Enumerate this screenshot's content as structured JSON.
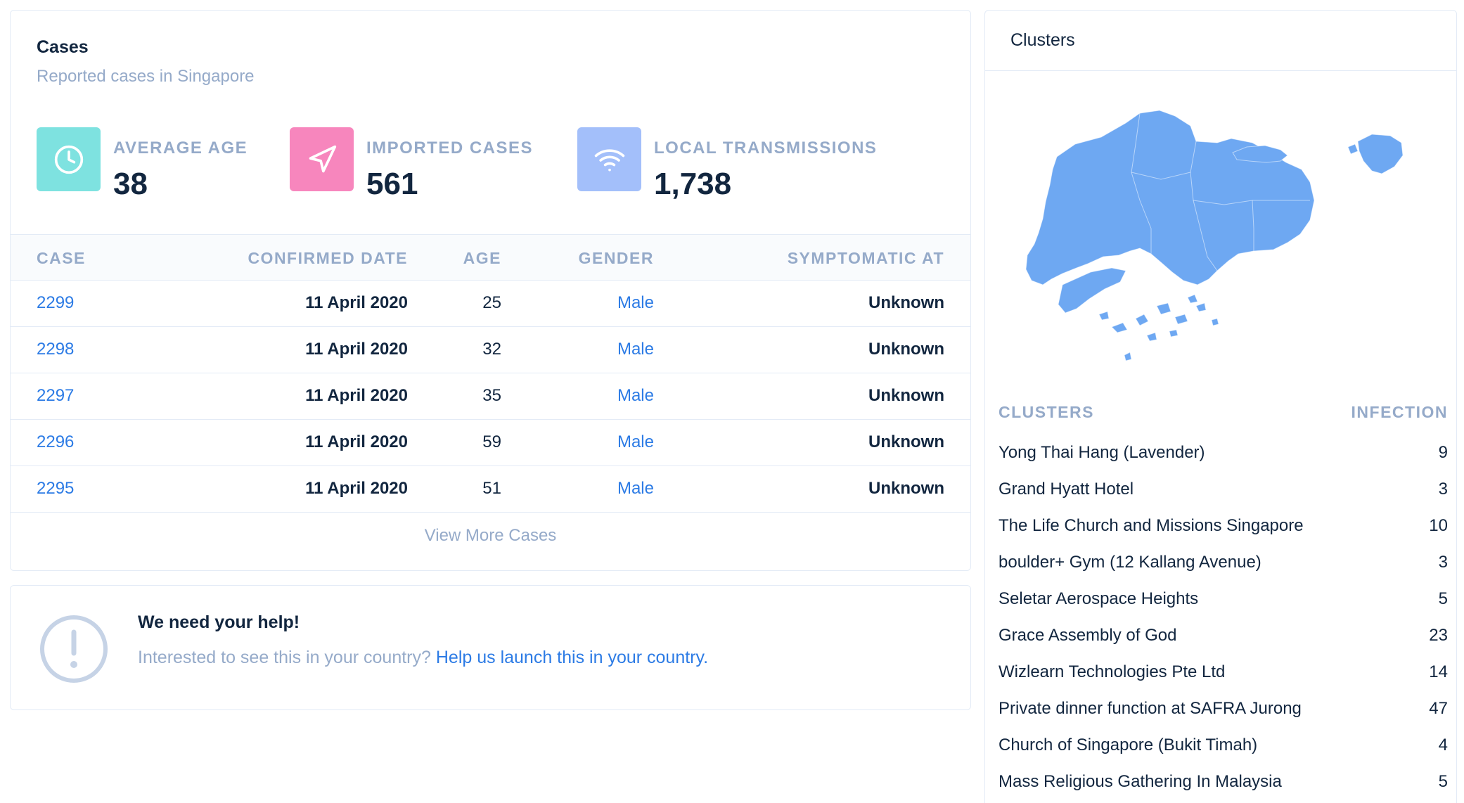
{
  "cases": {
    "title": "Cases",
    "subtitle": "Reported cases in Singapore",
    "stats": [
      {
        "label": "AVERAGE AGE",
        "value": "38",
        "icon": "clock-icon",
        "color": "#7ee2e0"
      },
      {
        "label": "IMPORTED CASES",
        "value": "561",
        "icon": "send-icon",
        "color": "#f786bd"
      },
      {
        "label": "LOCAL TRANSMISSIONS",
        "value": "1,738",
        "icon": "wifi-icon",
        "color": "#a3bffa"
      }
    ],
    "columns": [
      "CASE",
      "CONFIRMED DATE",
      "AGE",
      "GENDER",
      "SYMPTOMATIC AT"
    ],
    "rows": [
      {
        "case": "2299",
        "date": "11 April 2020",
        "age": "25",
        "gender": "Male",
        "symptomatic": "Unknown"
      },
      {
        "case": "2298",
        "date": "11 April 2020",
        "age": "32",
        "gender": "Male",
        "symptomatic": "Unknown"
      },
      {
        "case": "2297",
        "date": "11 April 2020",
        "age": "35",
        "gender": "Male",
        "symptomatic": "Unknown"
      },
      {
        "case": "2296",
        "date": "11 April 2020",
        "age": "59",
        "gender": "Male",
        "symptomatic": "Unknown"
      },
      {
        "case": "2295",
        "date": "11 April 2020",
        "age": "51",
        "gender": "Male",
        "symptomatic": "Unknown"
      }
    ],
    "view_more": "View More Cases"
  },
  "help": {
    "icon": "exclamation-circle-icon",
    "title": "We need your help!",
    "text": "Interested to see this in your country?",
    "link": "Help us launch this in your country."
  },
  "clusters": {
    "title": "Clusters",
    "map_icon": "singapore-map",
    "map_color": "#6ea8f2",
    "columns": [
      "CLUSTERS",
      "INFECTION"
    ],
    "rows": [
      {
        "name": "Yong Thai Hang (Lavender)",
        "count": "9"
      },
      {
        "name": "Grand Hyatt Hotel",
        "count": "3"
      },
      {
        "name": "The Life Church and Missions Singapore",
        "count": "10"
      },
      {
        "name": "boulder+ Gym (12 Kallang Avenue)",
        "count": "3"
      },
      {
        "name": "Seletar Aerospace Heights",
        "count": "5"
      },
      {
        "name": "Grace Assembly of God",
        "count": "23"
      },
      {
        "name": "Wizlearn Technologies Pte Ltd",
        "count": "14"
      },
      {
        "name": "Private dinner function at SAFRA Jurong",
        "count": "47"
      },
      {
        "name": "Church of Singapore (Bukit Timah)",
        "count": "4"
      },
      {
        "name": "Mass Religious Gathering In Malaysia",
        "count": "5"
      }
    ]
  }
}
